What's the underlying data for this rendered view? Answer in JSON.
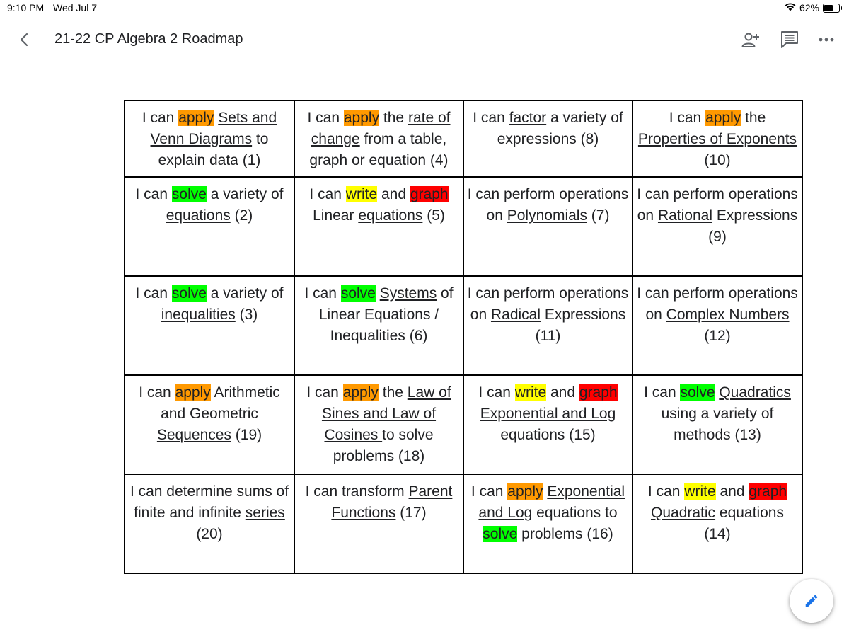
{
  "status_bar": {
    "time": "9:10 PM",
    "date": "Wed Jul 7",
    "battery": "62%",
    "battery_level": 0.62
  },
  "header": {
    "title": "21-22 CP Algebra 2 Roadmap",
    "back_icon": "chevron-left-icon",
    "share_icon": "add-person-icon",
    "comment_icon": "comment-icon",
    "more_icon": "more-horizontal-icon"
  },
  "colors": {
    "apply": "#ff9900",
    "write": "#ffff00",
    "graph": "#ff0000",
    "solve": "#00ff00",
    "accent": "#1a73e8"
  },
  "edit_fab": {
    "icon": "pencil-icon"
  },
  "roadmap": {
    "rows": [
      [
        [
          {
            "t": "I can "
          },
          {
            "t": "apply",
            "h": "orange"
          },
          {
            "t": " "
          },
          {
            "t": "Sets and Venn Diagrams",
            "u": true
          },
          {
            "t": " to explain data (1)"
          }
        ],
        [
          {
            "t": "I can "
          },
          {
            "t": "apply",
            "h": "orange"
          },
          {
            "t": " the "
          },
          {
            "t": "rate of change",
            "u": true
          },
          {
            "t": " from a table, graph or equation (4)"
          }
        ],
        [
          {
            "t": "I can "
          },
          {
            "t": "factor",
            "u": true
          },
          {
            "t": " a variety of expressions (8)"
          }
        ],
        [
          {
            "t": "I can "
          },
          {
            "t": "apply",
            "h": "orange"
          },
          {
            "t": " the "
          },
          {
            "t": "Properties of Exponents",
            "u": true
          },
          {
            "t": " (10)"
          }
        ]
      ],
      [
        [
          {
            "t": "I can "
          },
          {
            "t": "solve",
            "h": "green"
          },
          {
            "t": " a variety of "
          },
          {
            "t": "equations",
            "u": true
          },
          {
            "t": " (2)"
          }
        ],
        [
          {
            "t": "I can "
          },
          {
            "t": "write",
            "h": "yellow"
          },
          {
            "t": " and "
          },
          {
            "t": "graph",
            "h": "red"
          },
          {
            "t": " Linear "
          },
          {
            "t": "equations",
            "u": true
          },
          {
            "t": " (5)"
          }
        ],
        [
          {
            "t": "I can perform operations on "
          },
          {
            "t": "Polynomials",
            "u": true
          },
          {
            "t": " (7)"
          }
        ],
        [
          {
            "t": "I can perform operations on "
          },
          {
            "t": "Rational",
            "u": true
          },
          {
            "t": " Expressions (9)"
          }
        ]
      ],
      [
        [
          {
            "t": "I can "
          },
          {
            "t": "solve",
            "h": "green"
          },
          {
            "t": " a variety of "
          },
          {
            "t": "inequalities",
            "u": true
          },
          {
            "t": " (3)"
          }
        ],
        [
          {
            "t": "I can "
          },
          {
            "t": "solve",
            "h": "green"
          },
          {
            "t": " "
          },
          {
            "t": "Systems",
            "u": true
          },
          {
            "t": " of Linear Equations / Inequalities (6)"
          }
        ],
        [
          {
            "t": "I can perform operations on "
          },
          {
            "t": "Radical",
            "u": true
          },
          {
            "t": " Expressions (11)"
          }
        ],
        [
          {
            "t": "I can perform operations on "
          },
          {
            "t": "Complex Numbers",
            "u": true
          },
          {
            "t": " (12)"
          }
        ]
      ],
      [
        [
          {
            "t": "I can "
          },
          {
            "t": "apply",
            "h": "orange"
          },
          {
            "t": " Arithmetic and Geometric "
          },
          {
            "t": "Sequences",
            "u": true
          },
          {
            "t": " (19)"
          }
        ],
        [
          {
            "t": "I can "
          },
          {
            "t": "apply",
            "h": "orange"
          },
          {
            "t": " the "
          },
          {
            "t": "Law of Sines and Law of Cosines ",
            "u": true
          },
          {
            "t": "to solve problems (18)"
          }
        ],
        [
          {
            "t": "I can "
          },
          {
            "t": "write",
            "h": "yellow"
          },
          {
            "t": " and "
          },
          {
            "t": "graph",
            "h": "red"
          },
          {
            "t": " "
          },
          {
            "t": "Exponential and Log",
            "u": true
          },
          {
            "t": " equations (15)"
          }
        ],
        [
          {
            "t": "I can "
          },
          {
            "t": "solve",
            "h": "green"
          },
          {
            "t": " "
          },
          {
            "t": "Quadratics",
            "u": true
          },
          {
            "t": " using a variety of methods (13)"
          }
        ]
      ],
      [
        [
          {
            "t": "I can determine sums of finite and infinite "
          },
          {
            "t": "series",
            "u": true
          },
          {
            "t": " (20)"
          }
        ],
        [
          {
            "t": "I can transform "
          },
          {
            "t": "Parent Functions",
            "u": true
          },
          {
            "t": " (17)"
          }
        ],
        [
          {
            "t": "I can "
          },
          {
            "t": "apply",
            "h": "orange"
          },
          {
            "t": " "
          },
          {
            "t": "Exponential and Log",
            "u": true
          },
          {
            "t": " equations to "
          },
          {
            "t": "solve",
            "h": "green"
          },
          {
            "t": " problems (16)"
          }
        ],
        [
          {
            "t": "I can "
          },
          {
            "t": "write",
            "h": "yellow"
          },
          {
            "t": " and "
          },
          {
            "t": "graph",
            "h": "red"
          },
          {
            "t": " "
          },
          {
            "t": "Quadratic",
            "u": true
          },
          {
            "t": " equations (14)"
          }
        ]
      ]
    ]
  }
}
